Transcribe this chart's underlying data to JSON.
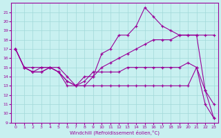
{
  "xlabel": "Windchill (Refroidissement éolien,°C)",
  "xlim": [
    -0.5,
    23.5
  ],
  "ylim": [
    9,
    22
  ],
  "yticks": [
    9,
    10,
    11,
    12,
    13,
    14,
    15,
    16,
    17,
    18,
    19,
    20,
    21
  ],
  "xticks": [
    0,
    1,
    2,
    3,
    4,
    5,
    6,
    7,
    8,
    9,
    10,
    11,
    12,
    13,
    14,
    15,
    16,
    17,
    18,
    19,
    20,
    21,
    22,
    23
  ],
  "background_color": "#c8f0f0",
  "grid_color": "#a0d8d8",
  "line_color": "#990099",
  "line1_x": [
    0,
    1,
    2,
    3,
    4,
    5,
    6,
    7,
    8,
    9,
    10,
    11,
    12,
    13,
    14,
    15,
    16,
    17,
    18,
    19,
    20,
    21,
    22,
    23
  ],
  "line1_y": [
    17,
    15,
    14.5,
    15,
    15,
    14.5,
    13,
    13,
    13.5,
    14.5,
    14.5,
    14.5,
    14.5,
    15,
    15,
    15,
    15,
    15,
    15,
    15,
    15.5,
    15,
    12.5,
    9.5
  ],
  "line2_x": [
    0,
    1,
    2,
    3,
    4,
    5,
    6,
    7,
    8,
    9,
    10,
    11,
    12,
    13,
    14,
    15,
    16,
    17,
    18,
    19,
    20,
    21,
    22,
    23
  ],
  "line2_y": [
    17,
    15,
    14.5,
    14.5,
    15,
    14.5,
    13.5,
    13,
    13,
    14,
    16.5,
    17,
    18.5,
    18.5,
    19.5,
    21.5,
    20.5,
    19.5,
    19,
    18.5,
    18.5,
    18.5,
    12.5,
    11
  ],
  "line3_x": [
    0,
    1,
    2,
    3,
    4,
    5,
    6,
    7,
    8,
    9,
    10,
    11,
    12,
    13,
    14,
    15,
    16,
    17,
    18,
    19,
    20,
    21,
    22,
    23
  ],
  "line3_y": [
    17,
    15,
    14.5,
    14.5,
    15,
    14.5,
    13.5,
    13,
    14,
    14,
    15,
    15.5,
    16,
    16.5,
    17,
    17.5,
    18,
    18,
    18,
    18.5,
    18.5,
    18.5,
    18.5,
    18.5
  ],
  "line4_x": [
    0,
    1,
    2,
    3,
    4,
    5,
    6,
    7,
    8,
    9,
    10,
    11,
    12,
    13,
    14,
    15,
    16,
    17,
    18,
    19,
    20,
    21,
    22,
    23
  ],
  "line4_y": [
    17,
    15,
    15,
    15,
    15,
    15,
    14,
    13,
    13,
    13,
    13,
    13,
    13,
    13,
    13,
    13,
    13,
    13,
    13,
    13,
    13,
    15,
    11,
    9.5
  ]
}
